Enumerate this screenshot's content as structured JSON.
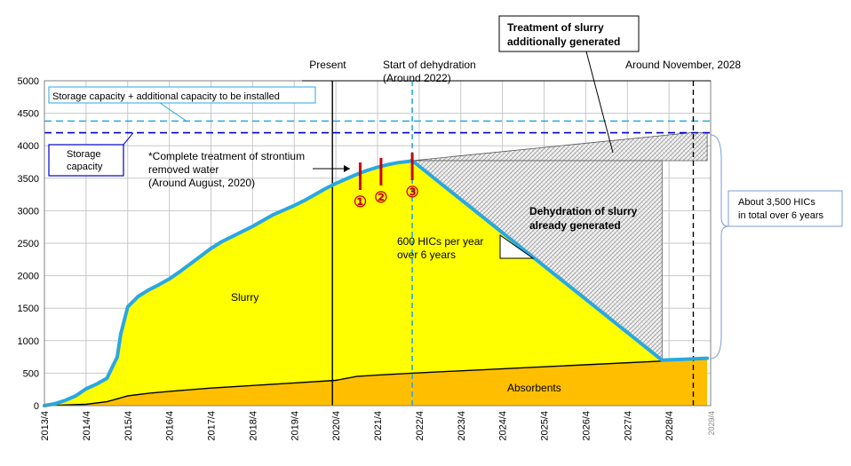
{
  "chart_data": {
    "type": "area",
    "ylim": [
      0,
      5000
    ],
    "yticks": [
      0,
      500,
      1000,
      1500,
      2000,
      2500,
      3000,
      3500,
      4000,
      4500,
      5000
    ],
    "xlim": [
      "2013/4",
      "2029/4"
    ],
    "xticks": [
      "2013/4",
      "2014/4",
      "2015/4",
      "2016/4",
      "2017/4",
      "2018/4",
      "2019/4",
      "2020/4",
      "2021/4",
      "2022/4",
      "2023/4",
      "2024/4",
      "2025/4",
      "2026/4",
      "2027/4",
      "2028/4",
      "2029/4"
    ],
    "grid": true,
    "series": [
      {
        "name": "Slurry",
        "role": "total HIC count (slurry + absorbents)",
        "color": "#29a8e0",
        "fill": "#ffff00",
        "points": [
          [
            "2013/4",
            0
          ],
          [
            "2013/7",
            30
          ],
          [
            "2013/10",
            80
          ],
          [
            "2014/1",
            150
          ],
          [
            "2014/4",
            260
          ],
          [
            "2014/7",
            330
          ],
          [
            "2014/10",
            420
          ],
          [
            "2015/1",
            750
          ],
          [
            "2015/2",
            1100
          ],
          [
            "2015/4",
            1520
          ],
          [
            "2015/7",
            1680
          ],
          [
            "2015/10",
            1780
          ],
          [
            "2016/1",
            1860
          ],
          [
            "2016/4",
            1950
          ],
          [
            "2016/7",
            2060
          ],
          [
            "2016/10",
            2180
          ],
          [
            "2017/1",
            2300
          ],
          [
            "2017/4",
            2420
          ],
          [
            "2017/7",
            2520
          ],
          [
            "2017/10",
            2600
          ],
          [
            "2018/1",
            2680
          ],
          [
            "2018/4",
            2760
          ],
          [
            "2018/7",
            2850
          ],
          [
            "2018/10",
            2940
          ],
          [
            "2019/1",
            3010
          ],
          [
            "2019/4",
            3080
          ],
          [
            "2019/7",
            3160
          ],
          [
            "2019/10",
            3250
          ],
          [
            "2020/1",
            3340
          ],
          [
            "2020/4",
            3420
          ],
          [
            "2020/7",
            3490
          ],
          [
            "2020/10",
            3560
          ],
          [
            "2021/1",
            3620
          ],
          [
            "2021/4",
            3670
          ],
          [
            "2021/7",
            3710
          ],
          [
            "2021/10",
            3740
          ],
          [
            "2022/1",
            3760
          ],
          [
            "2022/2",
            3770
          ],
          [
            "2028/2",
            700
          ],
          [
            "2029/3",
            730
          ]
        ]
      },
      {
        "name": "Absorbents",
        "color": "#000000",
        "fill": "#ffbf00",
        "points": [
          [
            "2013/4",
            0
          ],
          [
            "2014/4",
            20
          ],
          [
            "2014/10",
            60
          ],
          [
            "2015/4",
            150
          ],
          [
            "2015/10",
            190
          ],
          [
            "2016/4",
            220
          ],
          [
            "2017/4",
            270
          ],
          [
            "2018/4",
            310
          ],
          [
            "2019/4",
            350
          ],
          [
            "2020/4",
            390
          ],
          [
            "2020/10",
            450
          ],
          [
            "2021/4",
            470
          ],
          [
            "2022/2",
            500
          ],
          [
            "2029/3",
            720
          ]
        ]
      }
    ],
    "hatched_regions": [
      {
        "label": "Treatment of slurry additionally generated",
        "polygon": [
          [
            "2022/2",
            3770
          ],
          [
            "2028/10",
            4200
          ],
          [
            "2029/3",
            4200
          ],
          [
            "2029/3",
            3770
          ]
        ]
      },
      {
        "label": "Dehydration of slurry already generated",
        "polygon": [
          [
            "2022/2",
            3770
          ],
          [
            "2028/2",
            3770
          ],
          [
            "2028/2",
            700
          ]
        ]
      }
    ],
    "reference_lines": [
      {
        "label": "Storage capacity + additional capacity to be installed",
        "axis": "y",
        "value": 4380,
        "color": "#29a8e0",
        "style": "dashed"
      },
      {
        "label": "Storage capacity",
        "axis": "y",
        "value": 4200,
        "color": "#0000cc",
        "style": "dashed"
      },
      {
        "label": "Present",
        "axis": "x",
        "value": "2020/3",
        "color": "#000000",
        "style": "solid"
      },
      {
        "label": "Start of dehydration\n(Around 2022)",
        "axis": "x",
        "value": "2022/2",
        "color": "#29a8e0",
        "style": "dashed"
      },
      {
        "label": "Around November, 2028",
        "axis": "x",
        "value": "2028/11",
        "color": "#000000",
        "style": "dashed"
      }
    ],
    "markers": [
      {
        "label": "①",
        "x": "2020/11",
        "y": 3620,
        "color": "#cc0000"
      },
      {
        "label": "②",
        "x": "2021/5",
        "y": 3690,
        "color": "#cc0000"
      },
      {
        "label": "③",
        "x": "2022/2",
        "y": 3770,
        "color": "#cc0000"
      }
    ],
    "annotations": {
      "slurry_label": "Slurry",
      "absorbents_label": "Absorbents",
      "strontium_note": "*Complete treatment of strontium\nremoved water\n(Around August, 2020)",
      "rate_note": "600 HICs per year\nover 6 years",
      "dehydration_label": "Dehydration of slurry\nalready generated",
      "treatment_label": "Treatment of slurry\nadditionally generated",
      "total_note": "About 3,500 HICs\nin total over 6 years",
      "storage_capacity_box": "Storage\ncapacity",
      "capacity_plus_box": "Storage capacity + additional capacity to be installed"
    }
  }
}
